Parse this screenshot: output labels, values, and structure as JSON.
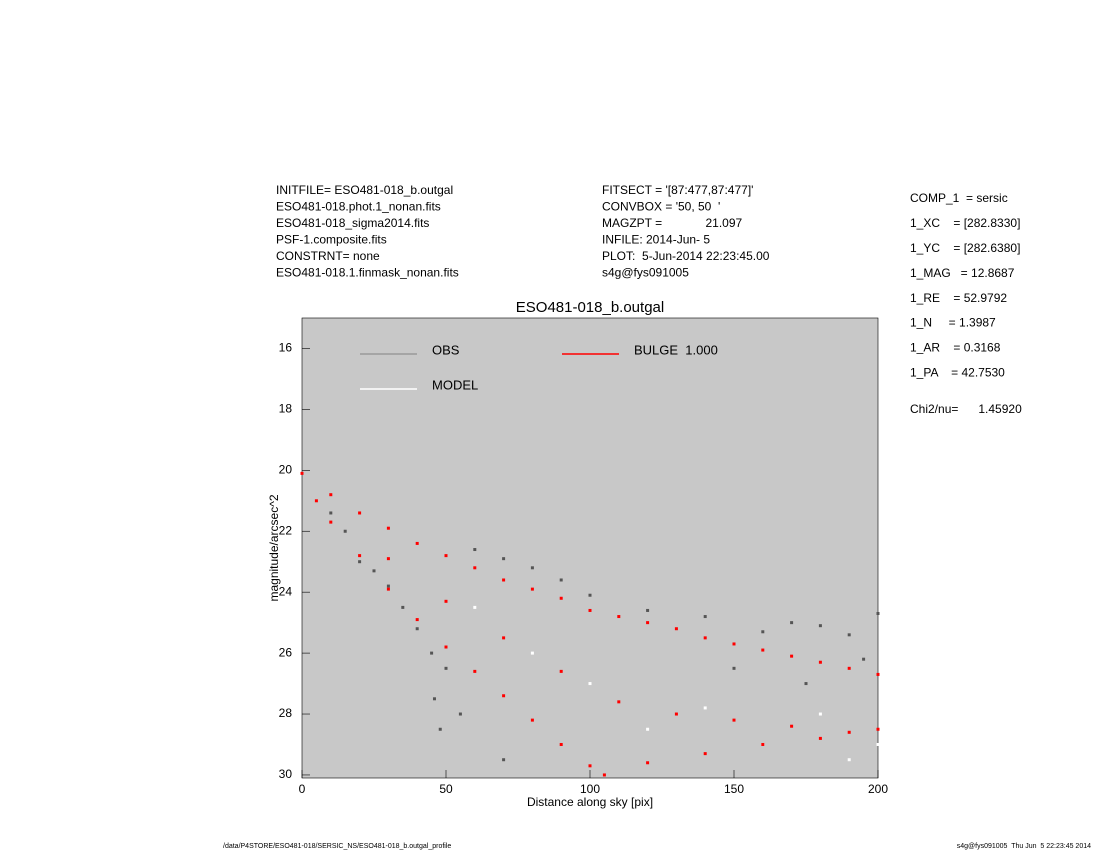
{
  "header": {
    "left": [
      "INITFILE= ESO481-018_b.outgal",
      "ESO481-018.phot.1_nonan.fits",
      "ESO481-018_sigma2014.fits",
      "PSF-1.composite.fits",
      "CONSTRNT= none",
      "ESO481-018.1.finmask_nonan.fits"
    ],
    "middle": [
      "FITSECT = '[87:477,87:477]'",
      "CONVBOX = '50, 50  '",
      "MAGZPT =             21.097",
      "INFILE: 2014-Jun- 5",
      "PLOT:  5-Jun-2014 22:23:45.00",
      "s4g@fys091005"
    ],
    "right": [
      "COMP_1  = sersic",
      "1_XC    = [282.8330]",
      "1_YC    = [282.6380]",
      "1_MAG   = 12.8687",
      "1_RE    = 52.9792",
      "1_N     = 1.3987",
      "1_AR    = 0.3168",
      "1_PA    = 42.7530",
      "Chi2/nu=      1.45920"
    ]
  },
  "footer": {
    "left": "/data/P4STORE/ESO481-018/SERSIC_NS/ESO481-018_b.outgal_profile",
    "right": "s4g@fys091005  Thu Jun  5 22:23:45 2014"
  },
  "chart_data": {
    "type": "scatter",
    "title": "ESO481-018_b.outgal",
    "x_label": "Distance along sky [pix]",
    "y_label": "magnitude/arcsec^2",
    "xlim": [
      0,
      200
    ],
    "xticks": [
      0,
      50,
      100,
      150,
      200
    ],
    "ylim": [
      15.0,
      30.1
    ],
    "yticks": [
      16,
      18,
      20,
      22,
      24,
      26,
      28,
      30
    ],
    "y_inverted": true,
    "background": "#c8c8c8",
    "series": [
      {
        "name": "OBS",
        "color": "#555555",
        "x": [
          10,
          15,
          20,
          25,
          30,
          35,
          40,
          45,
          50,
          60,
          70,
          80,
          90,
          100,
          120,
          140,
          160,
          170,
          180,
          190,
          200,
          46,
          48,
          55,
          70,
          150,
          175,
          195
        ],
        "values": [
          21.4,
          22.0,
          23.0,
          23.3,
          23.8,
          24.5,
          25.2,
          26.0,
          26.5,
          22.6,
          22.9,
          23.2,
          23.6,
          24.1,
          24.6,
          24.8,
          25.3,
          25.0,
          25.1,
          25.4,
          24.7,
          27.5,
          28.5,
          28.0,
          29.5,
          26.5,
          27.0,
          26.2
        ]
      },
      {
        "name": "MODEL",
        "color": "#ffffff",
        "x": [
          60,
          80,
          100,
          120,
          140,
          160,
          180,
          190,
          200
        ],
        "values": [
          24.5,
          26.0,
          27.0,
          28.5,
          27.8,
          29.0,
          28.0,
          29.5,
          29.0
        ]
      },
      {
        "name": "BULGE  1.000",
        "color": "#ff0000",
        "x": [
          0,
          10,
          20,
          30,
          40,
          50,
          60,
          70,
          80,
          90,
          100,
          110,
          120,
          130,
          140,
          150,
          160,
          170,
          180,
          190,
          200,
          5,
          10,
          20,
          30,
          40,
          50,
          60,
          70,
          80,
          90,
          100,
          105,
          30,
          50,
          70,
          90,
          110,
          130,
          150,
          170,
          190,
          120,
          140,
          160,
          180,
          200
        ],
        "values": [
          20.1,
          20.8,
          21.4,
          21.9,
          22.4,
          22.8,
          23.2,
          23.6,
          23.9,
          24.2,
          24.6,
          24.8,
          25.0,
          25.2,
          25.5,
          25.7,
          25.9,
          26.1,
          26.3,
          26.5,
          26.7,
          21.0,
          21.7,
          22.8,
          23.9,
          24.9,
          25.8,
          26.6,
          27.4,
          28.2,
          29.0,
          29.7,
          30.0,
          22.9,
          24.3,
          25.5,
          26.6,
          27.6,
          28.0,
          28.2,
          28.4,
          28.6,
          29.6,
          29.3,
          29.0,
          28.8,
          28.5
        ]
      }
    ]
  }
}
